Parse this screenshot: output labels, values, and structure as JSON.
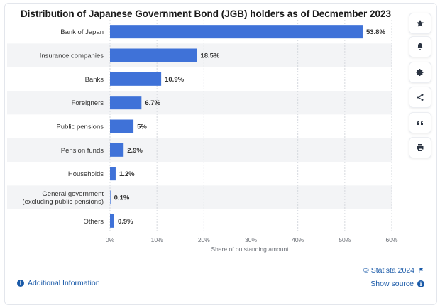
{
  "chart_data": {
    "type": "bar",
    "orientation": "horizontal",
    "title": "Distribution of Japanese Government Bond (JGB) holders as of Decmember 2023",
    "xlabel": "Share of outstanding amount",
    "ylabel": "",
    "xlim": [
      0,
      60
    ],
    "xticks": [
      "0%",
      "10%",
      "20%",
      "30%",
      "40%",
      "50%",
      "60%"
    ],
    "categories": [
      [
        "Bank of Japan"
      ],
      [
        "Insurance companies"
      ],
      [
        "Banks"
      ],
      [
        "Foreigners"
      ],
      [
        "Public pensions"
      ],
      [
        "Pension funds"
      ],
      [
        "Households"
      ],
      [
        "General government",
        "(excluding public pensions)"
      ],
      [
        "Others"
      ]
    ],
    "values": [
      53.8,
      18.5,
      10.9,
      6.7,
      5,
      2.9,
      1.2,
      0.1,
      0.9
    ],
    "value_labels": [
      "53.8%",
      "18.5%",
      "10.9%",
      "6.7%",
      "5%",
      "2.9%",
      "1.2%",
      "0.1%",
      "0.9%"
    ],
    "bar_color": "#3f72d8",
    "band_color": "#f3f4f6",
    "grid": true,
    "legend": "none"
  },
  "sidebar": {
    "icons": [
      "star-icon",
      "bell-icon",
      "gear-icon",
      "share-icon",
      "quote-icon",
      "print-icon"
    ]
  },
  "footer": {
    "additional_info": "Additional Information",
    "copyright": "© Statista 2024",
    "show_source": "Show source"
  }
}
